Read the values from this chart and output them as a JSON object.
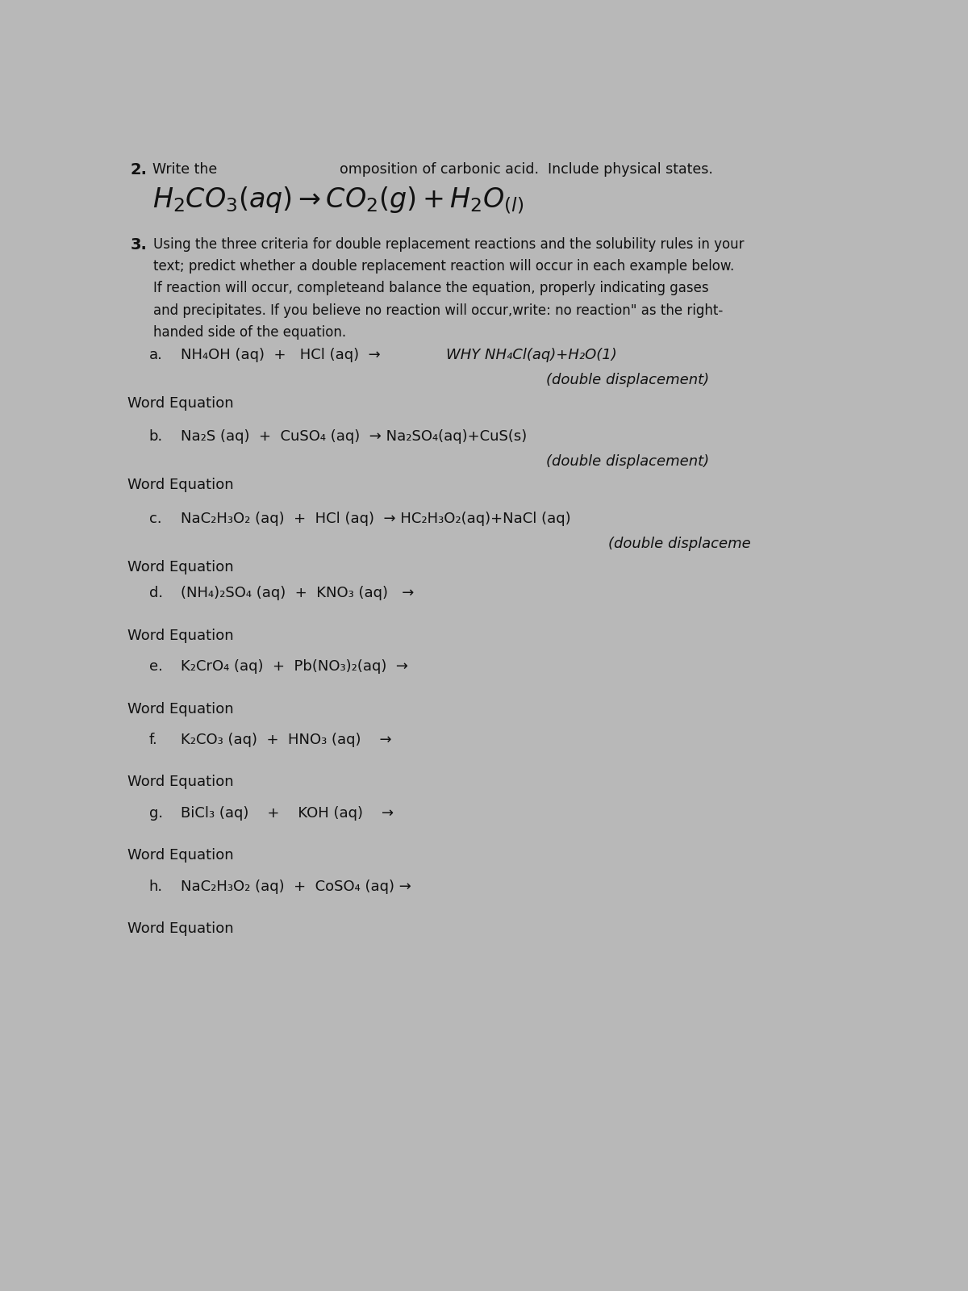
{
  "bg_color": "#b8b8b8",
  "text_color": "#1a1a1a",
  "page_width": 12.0,
  "page_height": 16.0,
  "section2": {
    "num": "2.",
    "line1": "Write the",
    "line1_mid": "omposition of carbonic acid.  Include physical states.",
    "eq_handwritten": "H₂CO₃(aq) →CO₂(g)+H₂O₍₁₎"
  },
  "section3": {
    "num": "3.",
    "lines": [
      "Using the three criteria for double replacement reactions and the solubility rules in your",
      "text; predict whether a double replacement reaction will occur in each example below.",
      "If reaction will occur, completeand balance the equation, properly indicating gases",
      "and precipitates. If you believe no reaction will occur,write: no reaction\" as the right-",
      "handed side of the equation."
    ]
  },
  "items": [
    {
      "letter": "a.",
      "printed": "NH₄OH (aq)  +   HCl (aq)  →",
      "handwritten_right1": "WHY NH₄Cl(aq)+H₂O(1)",
      "handwritten_right2": "(double displacement)",
      "word_eq": "Word Equation",
      "has_note": true,
      "note_right": true
    },
    {
      "letter": "b.",
      "printed": "Na₂S (aq)  +  CuSO₄ (aq)  → Na₂SO₄(aq)+CuS(s)",
      "handwritten_right2": "(double displacement)",
      "word_eq": "Word Equation",
      "has_note": true,
      "note_right": true
    },
    {
      "letter": "c.",
      "printed": "NaC₂H₃O₂ (aq)  +  HCl (aq)  → HC₂H₃O₂(aq)+NaCl (aq)",
      "handwritten_right2": "(double displaceme",
      "word_eq": "Word Equation",
      "has_note": true,
      "note_right": true
    },
    {
      "letter": "d.",
      "printed": "(NH₄)₂SO₄ (aq)  +  KNO₃ (aq)   →",
      "word_eq": "Word Equation",
      "has_note": false
    },
    {
      "letter": "e.",
      "printed": "K₂CrO₄ (aq)  +  Pb(NO₃)₂(aq)  →",
      "word_eq": "Word Equation",
      "has_note": false
    },
    {
      "letter": "f.",
      "printed": "K₂CO₃ (aq)  +  HNO₃ (aq)    →",
      "word_eq": "Word Equation",
      "has_note": false
    },
    {
      "letter": "g.",
      "printed": "BiCl₃ (aq)    +    KOH (aq)    →",
      "word_eq": "Word Equation",
      "has_note": false
    },
    {
      "letter": "h.",
      "printed": "NaC₂H₃O₂ (aq)  +  CoSO₄ (aq) →",
      "word_eq": "Word Equation",
      "has_note": false
    }
  ]
}
